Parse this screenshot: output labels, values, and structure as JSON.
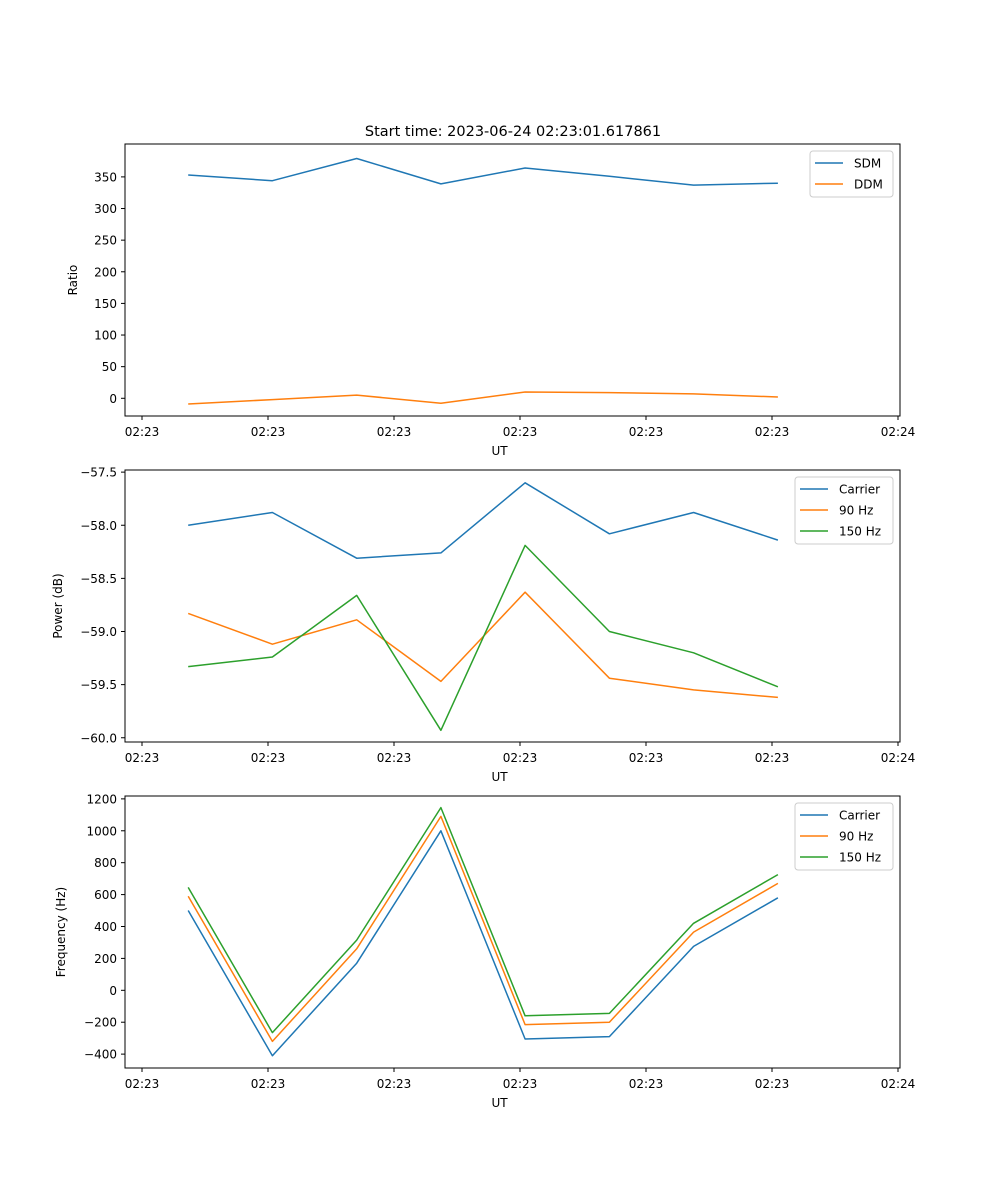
{
  "figure": {
    "title": "Start time: 2023-06-24 02:23:01.617861"
  },
  "colors": {
    "blue": "#1f77b4",
    "orange": "#ff7f0e",
    "green": "#2ca02c"
  },
  "chart_data": [
    {
      "type": "line",
      "title": "Start time: 2023-06-24 02:23:01.617861",
      "xlabel": "UT",
      "ylabel": "Ratio",
      "x_tick_labels": [
        "02:23",
        "02:23",
        "02:23",
        "02:23",
        "02:23",
        "02:23",
        "02:24"
      ],
      "x": [
        1,
        2,
        3,
        4,
        5,
        6,
        7,
        8
      ],
      "xlim": [
        0.25,
        9.45
      ],
      "ylim": [
        -28,
        402
      ],
      "y_ticks": [
        0,
        50,
        100,
        150,
        200,
        250,
        300,
        350
      ],
      "legend": "top-right",
      "grid": false,
      "series": [
        {
          "name": "SDM",
          "color": "#1f77b4",
          "values": [
            353,
            344,
            379,
            339,
            364,
            351,
            337,
            340
          ]
        },
        {
          "name": "DDM",
          "color": "#ff7f0e",
          "values": [
            -9,
            -2,
            5,
            -8,
            10,
            9,
            7,
            2
          ]
        }
      ]
    },
    {
      "type": "line",
      "xlabel": "UT",
      "ylabel": "Power (dB)",
      "x_tick_labels": [
        "02:23",
        "02:23",
        "02:23",
        "02:23",
        "02:23",
        "02:23",
        "02:24"
      ],
      "x": [
        1,
        2,
        3,
        4,
        5,
        6,
        7,
        8
      ],
      "xlim": [
        0.25,
        9.45
      ],
      "ylim": [
        -60.04,
        -57.48
      ],
      "y_ticks": [
        -60.0,
        -59.5,
        -59.0,
        -58.5,
        -58.0,
        -57.5
      ],
      "legend": "top-right",
      "grid": false,
      "series": [
        {
          "name": "Carrier",
          "color": "#1f77b4",
          "values": [
            -58.0,
            -57.88,
            -58.31,
            -58.26,
            -57.6,
            -58.08,
            -57.88,
            -58.14
          ]
        },
        {
          "name": "90 Hz",
          "color": "#ff7f0e",
          "values": [
            -58.83,
            -59.12,
            -58.89,
            -59.47,
            -58.63,
            -59.44,
            -59.55,
            -59.62
          ]
        },
        {
          "name": "150 Hz",
          "color": "#2ca02c",
          "values": [
            -59.33,
            -59.24,
            -58.66,
            -59.93,
            -58.19,
            -59.0,
            -59.2,
            -59.52
          ]
        }
      ]
    },
    {
      "type": "line",
      "xlabel": "UT",
      "ylabel": "Frequency (Hz)",
      "x_tick_labels": [
        "02:23",
        "02:23",
        "02:23",
        "02:23",
        "02:23",
        "02:23",
        "02:24"
      ],
      "x": [
        1,
        2,
        3,
        4,
        5,
        6,
        7,
        8
      ],
      "xlim": [
        0.25,
        9.45
      ],
      "ylim": [
        -487,
        1218
      ],
      "y_ticks": [
        -400,
        -200,
        0,
        200,
        400,
        600,
        800,
        1000,
        1200
      ],
      "legend": "top-right",
      "grid": false,
      "series": [
        {
          "name": "Carrier",
          "color": "#1f77b4",
          "values": [
            500,
            -410,
            170,
            1000,
            -305,
            -290,
            275,
            580
          ]
        },
        {
          "name": "90 Hz",
          "color": "#ff7f0e",
          "values": [
            590,
            -320,
            260,
            1090,
            -215,
            -200,
            365,
            670
          ]
        },
        {
          "name": "150 Hz",
          "color": "#2ca02c",
          "values": [
            645,
            -265,
            315,
            1145,
            -160,
            -145,
            420,
            725
          ]
        }
      ]
    }
  ]
}
